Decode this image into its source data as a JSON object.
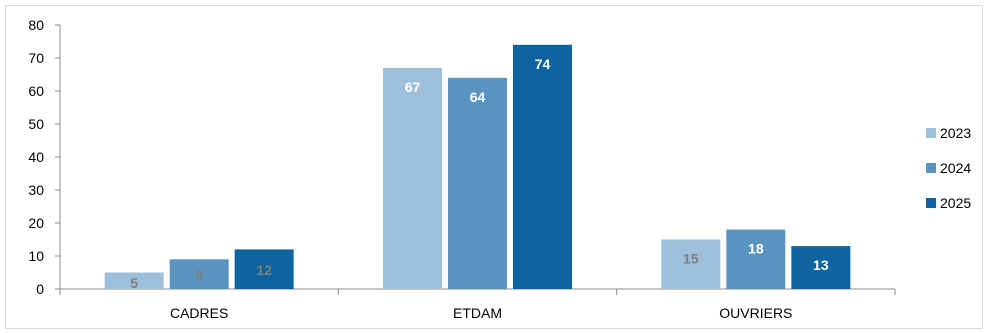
{
  "chart_data": {
    "type": "bar",
    "categories": [
      "CADRES",
      "ETDAM",
      "OUVRIERS"
    ],
    "series": [
      {
        "name": "2023",
        "values": [
          5,
          67,
          15
        ],
        "color": "#9dbfd9",
        "label_color": "#7f7f7f"
      },
      {
        "name": "2024",
        "values": [
          9,
          64,
          18
        ],
        "color": "#5a94c1",
        "label_color": "#7f7f7f"
      },
      {
        "name": "2025",
        "values": [
          12,
          74,
          13
        ],
        "color": "#0e64a0",
        "label_color": "#ffffff"
      }
    ],
    "yticks": [
      0,
      10,
      20,
      30,
      40,
      50,
      60,
      70,
      80
    ],
    "ylim": [
      0,
      80
    ],
    "grid": false,
    "legend_position": "right",
    "label_colors": [
      [
        "#7f7f7f",
        "#7f7f7f",
        "#7f7f7f"
      ],
      [
        "#ffffff",
        "#ffffff",
        "#ffffff"
      ],
      [
        "#7f7f7f",
        "#ffffff",
        "#ffffff"
      ]
    ],
    "title": "",
    "xlabel": "",
    "ylabel": ""
  }
}
